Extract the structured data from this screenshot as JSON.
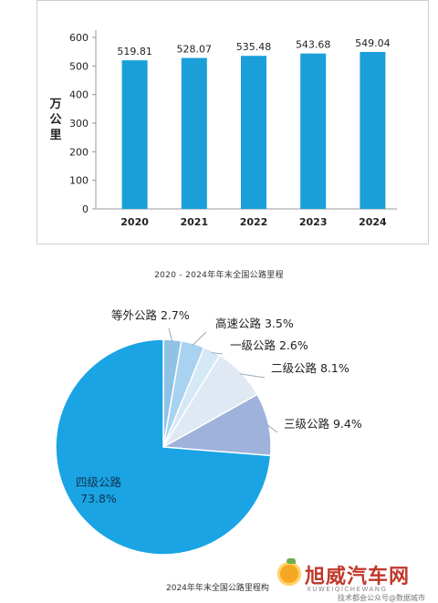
{
  "charts": {
    "bar": {
      "chart_data": {
        "type": "bar",
        "categories": [
          "2020",
          "2021",
          "2022",
          "2023",
          "2024"
        ],
        "values": [
          519.81,
          528.07,
          535.48,
          543.68,
          549.04
        ],
        "value_labels": [
          "519.81",
          "528.07",
          "535.48",
          "543.68",
          "549.04"
        ],
        "ylabel": "万公里",
        "ylim": [
          0,
          600
        ],
        "yticks": [
          "0",
          "100",
          "200",
          "300",
          "400",
          "500",
          "600"
        ],
        "yticks_values": [
          0,
          100,
          200,
          300,
          400,
          500,
          600
        ],
        "grid": false,
        "bar_color": "#1a9fd9"
      },
      "caption": "2020 - 2024年年末全国公路里程"
    },
    "pie": {
      "chart_data": {
        "type": "pie",
        "slices": [
          {
            "label": "等外公路 2.7%",
            "value": 2.7,
            "color": "#8fc3e6"
          },
          {
            "label": "高速公路 3.5%",
            "value": 3.5,
            "color": "#a8d2ef"
          },
          {
            "label": "一级公路 2.6%",
            "value": 2.6,
            "color": "#d4e8f6"
          },
          {
            "label": "二级公路 8.1%",
            "value": 8.1,
            "color": "#dfe8f3"
          },
          {
            "label": "三级公路 9.4%",
            "value": 9.4,
            "color": "#9fb2dc"
          },
          {
            "label": "四级公路",
            "label2": "73.8%",
            "value": 73.8,
            "color": "#1aa4e4"
          }
        ]
      },
      "caption": "2024年年末全国公路里程构"
    }
  },
  "watermark": {
    "title": "旭威汽车网",
    "subtitle": "XUWEIQICHEWANG",
    "tag": "技术都会公众号@数据城市"
  },
  "colors": {
    "bar": "#1a9fd9",
    "axis": "#999999",
    "text": "#222222"
  }
}
